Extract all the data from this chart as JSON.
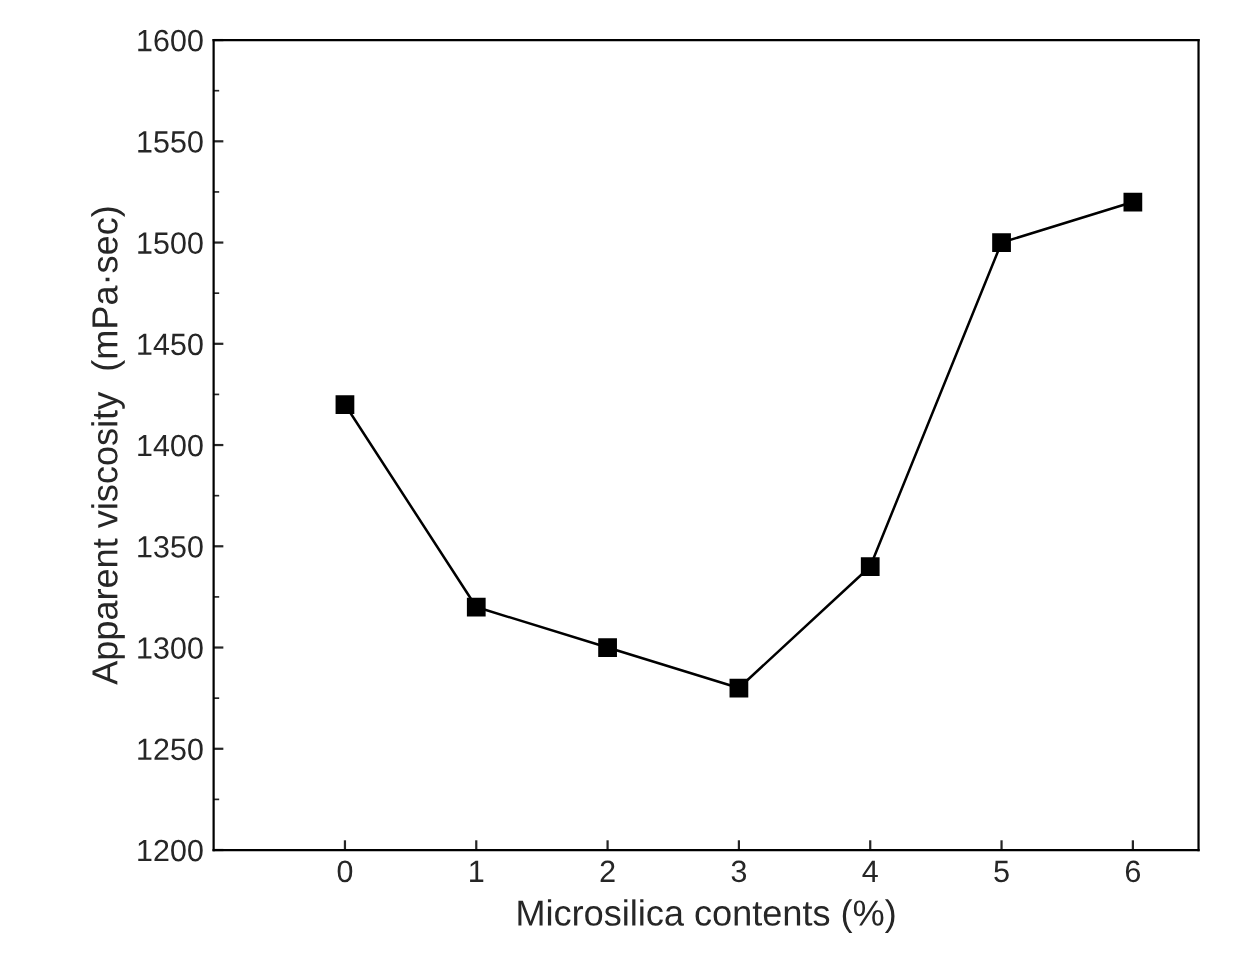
{
  "chart_data": {
    "type": "line",
    "xlabel": "Microsilica contents (%)",
    "ylabel": "Apparent viscosity  (mPa·sec)",
    "x": [
      0,
      1,
      2,
      3,
      4,
      5,
      6
    ],
    "series": [
      {
        "color": "#000000",
        "values": [
          1420,
          1320,
          1300,
          1280,
          1340,
          1500,
          1520
        ]
      }
    ],
    "xlim": [
      -1,
      6.5
    ],
    "xticks": [
      0,
      1,
      2,
      3,
      4,
      5,
      6
    ],
    "ylim": [
      1200,
      1600
    ],
    "yticks": [
      1200,
      1250,
      1300,
      1350,
      1400,
      1450,
      1500,
      1550,
      1600
    ],
    "marker": "square",
    "line_style": "solid",
    "grid": false,
    "legend": false
  }
}
